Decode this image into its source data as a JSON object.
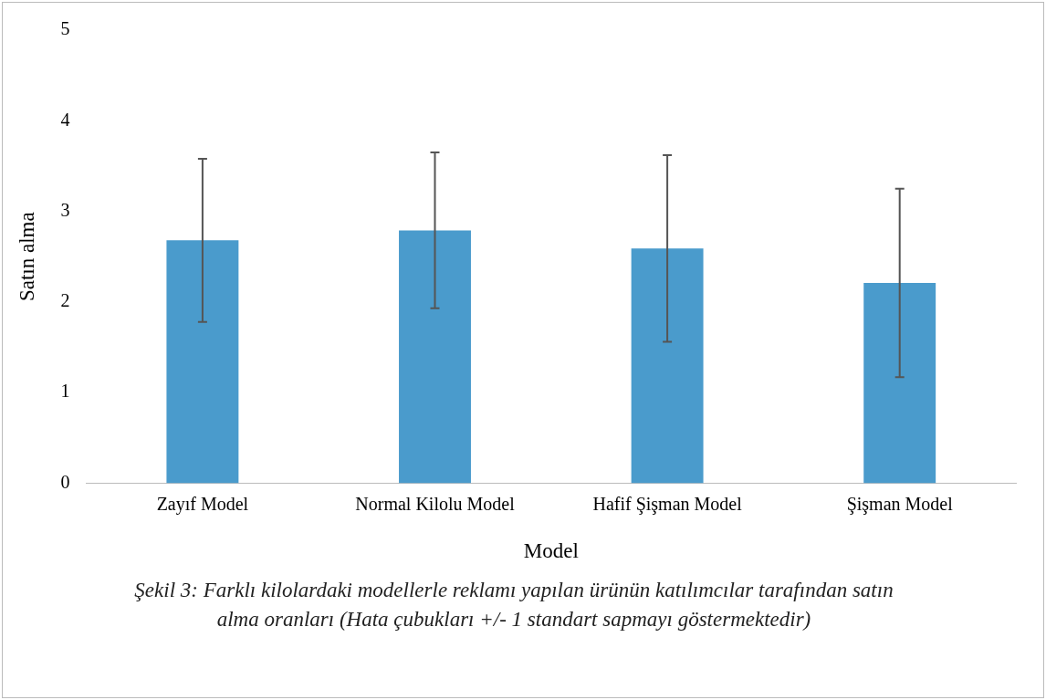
{
  "chart_data": {
    "type": "bar",
    "xlabel": "Model",
    "ylabel": "Satın alma",
    "categories": [
      "Zayıf Model",
      "Normal Kilolu Model",
      "Hafif Şişman Model",
      "Şişman Model"
    ],
    "values": [
      2.68,
      2.79,
      2.59,
      2.21
    ],
    "errors": [
      0.9,
      0.86,
      1.03,
      1.04
    ],
    "color": "#4a9bcc",
    "ylim": [
      0,
      5
    ],
    "yticks": [
      0,
      1,
      2,
      3,
      4,
      5
    ],
    "grid": false,
    "legend": false,
    "annotations": [
      "Şekil 3: Farklı kilolardaki modellerle reklamı yapılan ürünün katılımcılar tarafından satın alma oranları (Hata çubukları +/- 1 standart sapmayı göstermektedir)"
    ]
  }
}
